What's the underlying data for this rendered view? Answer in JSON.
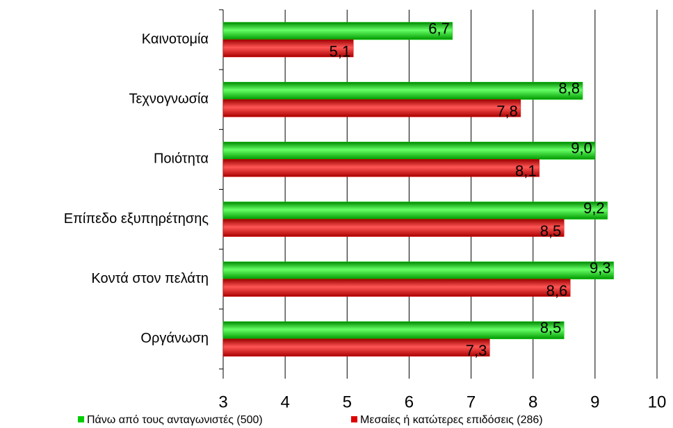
{
  "chart_data": {
    "type": "hbar",
    "categories": [
      "Καινοτομία",
      "Τεχνογνωσία",
      "Ποιότητα",
      "Επίπεδο εξυπηρέτησης",
      "Κοντά στον πελάτη",
      "Οργάνωση"
    ],
    "series": [
      {
        "name": "Πάνω από τους ανταγωνιστές (500)",
        "color": "#00cc00",
        "values": [
          6.7,
          8.8,
          9.0,
          9.2,
          9.3,
          8.5
        ],
        "value_labels": [
          "6,7",
          "8,8",
          "9,0",
          "9,2",
          "9,3",
          "8,5"
        ]
      },
      {
        "name": "Μεσαίες ή κατώτερες επιδόσεις (286)",
        "color": "#dd0000",
        "values": [
          5.1,
          7.8,
          8.1,
          8.5,
          8.6,
          7.3
        ],
        "value_labels": [
          "5,1",
          "7,8",
          "8,1",
          "8,5",
          "8,6",
          "7,3"
        ]
      }
    ],
    "xlim": [
      3,
      10
    ],
    "xticks": [
      3,
      4,
      5,
      6,
      7,
      8,
      9,
      10
    ],
    "grid": true
  }
}
